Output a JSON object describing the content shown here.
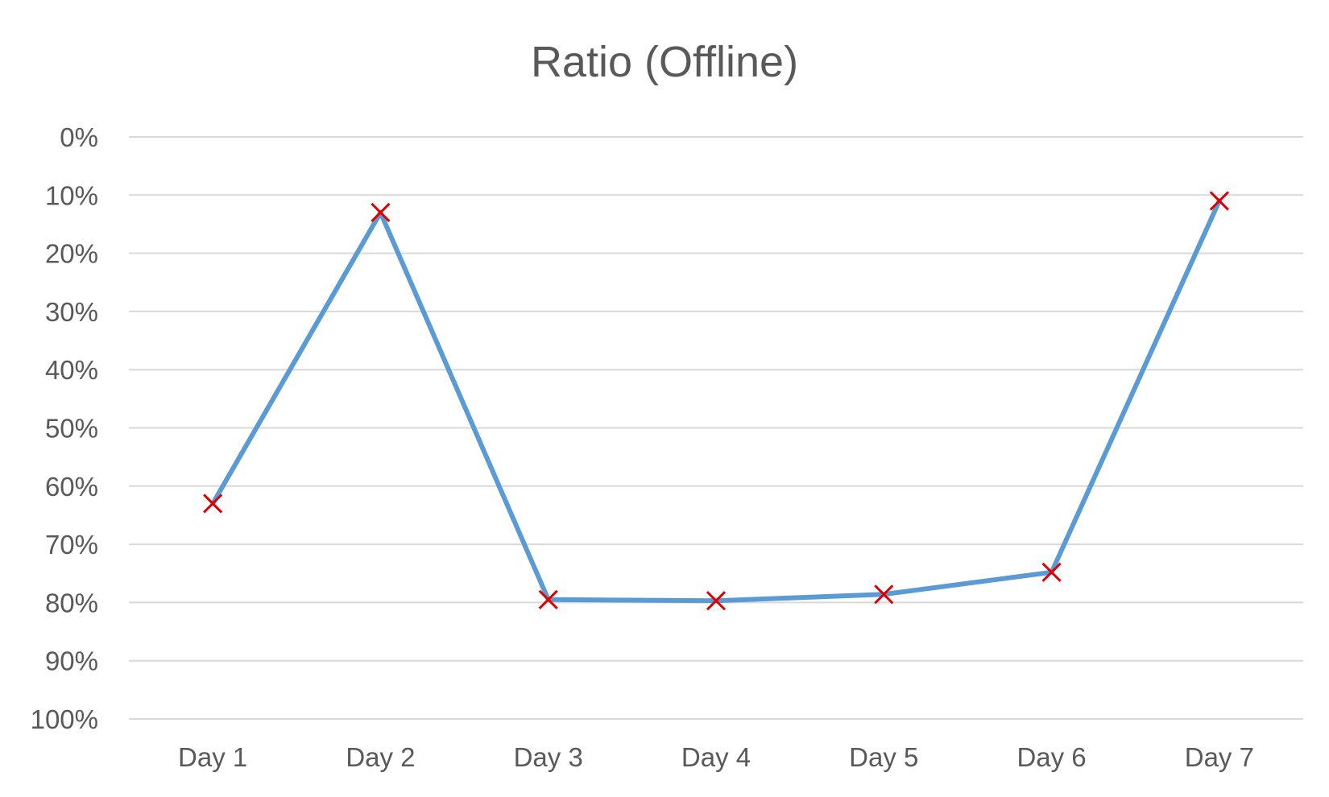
{
  "chart_data": {
    "type": "line",
    "title": "Ratio (Offline)",
    "xlabel": "",
    "ylabel": "",
    "categories": [
      "Day 1",
      "Day 2",
      "Day 3",
      "Day 4",
      "Day 5",
      "Day 6",
      "Day 7"
    ],
    "series": [
      {
        "values": [
          63,
          13,
          79.5,
          79.7,
          78.6,
          74.8,
          11
        ]
      }
    ],
    "y_ticks": [
      "0%",
      "10%",
      "20%",
      "30%",
      "40%",
      "50%",
      "60%",
      "70%",
      "80%",
      "90%",
      "100%"
    ],
    "ylim": [
      0,
      100
    ],
    "y_reversed": true,
    "grid": true,
    "legend": "none",
    "colors": {
      "line": "#5b9bd5",
      "marker": "#e00000",
      "grid": "#d9d9d9",
      "text": "#595959"
    },
    "marker": "x"
  }
}
